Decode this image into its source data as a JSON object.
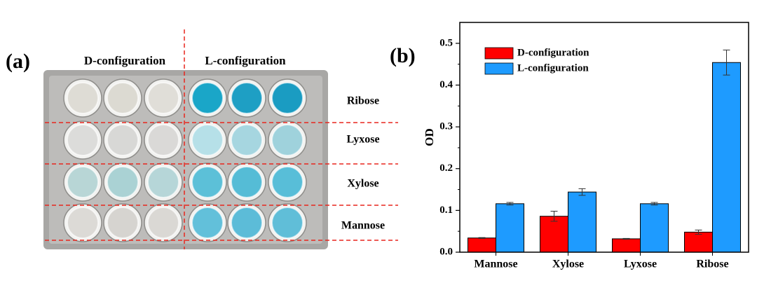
{
  "photo_panel": {
    "panel_label": "(a)",
    "column_labels": [
      "D-configuration",
      "L-configuration"
    ],
    "row_labels": [
      "Ribose",
      "Lyxose",
      "Xylose",
      "Mannose"
    ]
  },
  "chart_data": {
    "type": "bar",
    "panel_label": "(b)",
    "y_label": "OD",
    "categories": [
      "Mannose",
      "Xylose",
      "Lyxose",
      "Ribose"
    ],
    "series": [
      {
        "name": "D-configuration",
        "color": "#ff0000",
        "values": [
          0.034,
          0.086,
          0.032,
          0.048
        ],
        "errors": [
          0.001,
          0.012,
          0.001,
          0.005
        ]
      },
      {
        "name": "L-configuration",
        "color": "#1e9bff",
        "values": [
          0.116,
          0.144,
          0.116,
          0.454
        ],
        "errors": [
          0.003,
          0.008,
          0.003,
          0.03
        ]
      }
    ],
    "ylim": [
      0,
      0.55
    ],
    "yticks": [
      {
        "value": 0,
        "label": "0.0"
      },
      0.1,
      0.2,
      0.3,
      0.4,
      0.5
    ],
    "legend": "upper-left"
  }
}
